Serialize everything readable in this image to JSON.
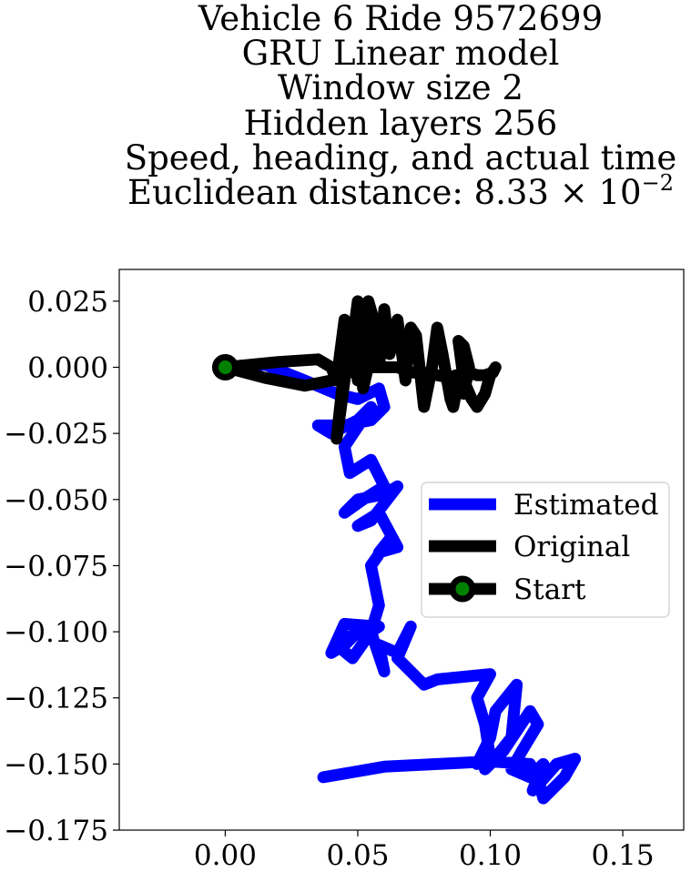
{
  "chart_data": {
    "type": "line",
    "title_lines": [
      "Vehicle 6 Ride 9572699",
      "GRU Linear model",
      "Window size 2",
      "Hidden layers 256",
      "Speed, heading, and actual time"
    ],
    "title_distance_prefix": "Euclidean distance: 8.33 × 10",
    "title_distance_exponent": "−2",
    "xlabel": "",
    "ylabel": "",
    "xlim": [
      -0.04,
      0.173
    ],
    "ylim": [
      -0.175,
      0.037
    ],
    "x_ticks": [
      0.0,
      0.05,
      0.1,
      0.15
    ],
    "x_tick_labels": [
      "0.00",
      "0.05",
      "0.10",
      "0.15"
    ],
    "y_ticks": [
      0.025,
      0.0,
      -0.025,
      -0.05,
      -0.075,
      -0.1,
      -0.125,
      -0.15,
      -0.175
    ],
    "y_tick_labels": [
      "0.025",
      "0.000",
      "−0.025",
      "−0.050",
      "−0.075",
      "−0.100",
      "−0.125",
      "−0.150",
      "−0.175"
    ],
    "grid": false,
    "legend_position": "center-right",
    "series": [
      {
        "name": "Estimated",
        "color": "#0000ff",
        "x": [
          0.0,
          0.015,
          0.03,
          0.042,
          0.05,
          0.058,
          0.06,
          0.055,
          0.045,
          0.035,
          0.04,
          0.05,
          0.055,
          0.045,
          0.047,
          0.055,
          0.06,
          0.052,
          0.045,
          0.05,
          0.06,
          0.065,
          0.055,
          0.05,
          0.058,
          0.065,
          0.058,
          0.062,
          0.055,
          0.058,
          0.055,
          0.058,
          0.045,
          0.04,
          0.045,
          0.05,
          0.042,
          0.048,
          0.055,
          0.06,
          0.058,
          0.065,
          0.07,
          0.065,
          0.075,
          0.08,
          0.09,
          0.1,
          0.095,
          0.098,
          0.1,
          0.095,
          0.1,
          0.102,
          0.11,
          0.108,
          0.1,
          0.098,
          0.105,
          0.115,
          0.118,
          0.112,
          0.108,
          0.115,
          0.12,
          0.116,
          0.118,
          0.125,
          0.132,
          0.128,
          0.12,
          0.118,
          0.115,
          0.1,
          0.08,
          0.06,
          0.037
        ],
        "y": [
          0.0,
          0.001,
          -0.005,
          -0.01,
          -0.012,
          -0.008,
          -0.015,
          -0.02,
          -0.022,
          -0.022,
          -0.025,
          -0.02,
          -0.015,
          -0.03,
          -0.04,
          -0.035,
          -0.045,
          -0.05,
          -0.055,
          -0.05,
          -0.048,
          -0.045,
          -0.058,
          -0.06,
          -0.055,
          -0.068,
          -0.07,
          -0.065,
          -0.075,
          -0.09,
          -0.1,
          -0.098,
          -0.097,
          -0.108,
          -0.105,
          -0.1,
          -0.105,
          -0.11,
          -0.1,
          -0.115,
          -0.105,
          -0.108,
          -0.098,
          -0.11,
          -0.12,
          -0.118,
          -0.117,
          -0.116,
          -0.125,
          -0.135,
          -0.148,
          -0.15,
          -0.14,
          -0.13,
          -0.12,
          -0.14,
          -0.15,
          -0.152,
          -0.145,
          -0.13,
          -0.135,
          -0.145,
          -0.152,
          -0.155,
          -0.15,
          -0.16,
          -0.158,
          -0.15,
          -0.148,
          -0.155,
          -0.163,
          -0.155,
          -0.15,
          -0.149,
          -0.15,
          -0.151,
          -0.155
        ]
      },
      {
        "name": "Original",
        "color": "#000000",
        "x": [
          0.0,
          0.02,
          0.035,
          0.04,
          0.042,
          0.045,
          0.048,
          0.05,
          0.052,
          0.054,
          0.056,
          0.055,
          0.052,
          0.05,
          0.047,
          0.045,
          0.043,
          0.042,
          0.045,
          0.048,
          0.05,
          0.052,
          0.055,
          0.058,
          0.06,
          0.062,
          0.065,
          0.068,
          0.07,
          0.072,
          0.075,
          0.078,
          0.08,
          0.082,
          0.085,
          0.086,
          0.088,
          0.09,
          0.092,
          0.09,
          0.088,
          0.09,
          0.093,
          0.095,
          0.098,
          0.1,
          0.102,
          0.101,
          0.098,
          0.095,
          0.092,
          0.09,
          0.087,
          0.085,
          0.08,
          0.075,
          0.07,
          0.065,
          0.06,
          0.055,
          0.05,
          0.045,
          0.04,
          0.03,
          0.015,
          0.0
        ],
        "y": [
          0.0,
          0.002,
          0.003,
          0.0,
          -0.005,
          0.018,
          0.01,
          0.025,
          0.015,
          0.025,
          0.018,
          0.005,
          -0.008,
          0.01,
          0.015,
          -0.005,
          -0.02,
          -0.027,
          0.0,
          0.01,
          -0.005,
          0.02,
          0.015,
          0.0,
          0.022,
          0.005,
          0.018,
          -0.005,
          0.015,
          0.012,
          -0.015,
          0.0,
          0.015,
          0.005,
          -0.012,
          -0.015,
          -0.005,
          -0.01,
          0.0,
          0.008,
          0.01,
          -0.005,
          -0.012,
          -0.015,
          -0.01,
          -0.003,
          0.0,
          -0.002,
          -0.003,
          -0.003,
          -0.002,
          -0.003,
          -0.003,
          -0.004,
          -0.003,
          -0.002,
          -0.002,
          0.0,
          0.0,
          0.0,
          0.0,
          -0.003,
          -0.005,
          -0.007,
          -0.004,
          0.0
        ]
      }
    ],
    "start": {
      "name": "Start",
      "x": 0.0,
      "y": 0.0,
      "color": "#000000",
      "face_color": "#008000"
    }
  }
}
